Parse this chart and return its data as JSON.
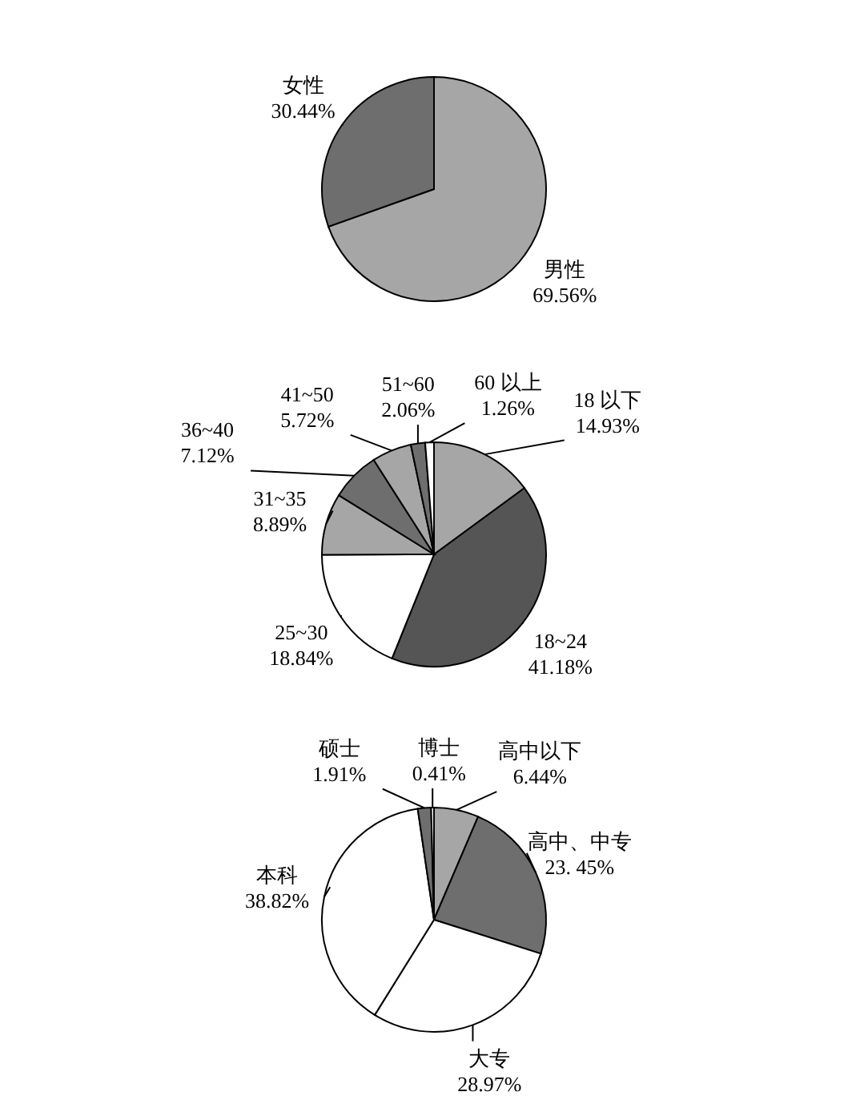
{
  "chart_data": [
    {
      "type": "pie",
      "categories": [
        "男性",
        "女性"
      ],
      "values": [
        69.56,
        30.44
      ],
      "colors": [
        "#a6a6a6",
        "#6e6e6e"
      ],
      "value_labels": [
        "69.56%",
        "30.44%"
      ]
    },
    {
      "type": "pie",
      "categories": [
        "18 以下",
        "18~24",
        "25~30",
        "31~35",
        "36~40",
        "41~50",
        "51~60",
        "60 以上"
      ],
      "values": [
        14.93,
        41.18,
        18.84,
        8.89,
        7.12,
        5.72,
        2.06,
        1.26
      ],
      "colors": [
        "#a6a6a6",
        "#555555",
        "#ffffff",
        "#a6a6a6",
        "#6e6e6e",
        "#a6a6a6",
        "#6e6e6e",
        "#ffffff"
      ],
      "value_labels": [
        "14.93%",
        "41.18%",
        "18.84%",
        "8.89%",
        "7.12%",
        "5.72%",
        "2.06%",
        "1.26%"
      ]
    },
    {
      "type": "pie",
      "categories": [
        "高中以下",
        "高中、中专",
        "大专",
        "本科",
        "硕士",
        "博士"
      ],
      "values": [
        6.44,
        23.45,
        28.97,
        38.82,
        1.91,
        0.41
      ],
      "colors": [
        "#a6a6a6",
        "#6e6e6e",
        "#ffffff",
        "#ffffff",
        "#6e6e6e",
        "#ffffff"
      ],
      "value_labels": [
        "6.44%",
        "23. 45%",
        "28.97%",
        "38.82%",
        "1.91%",
        "0.41%"
      ]
    }
  ]
}
